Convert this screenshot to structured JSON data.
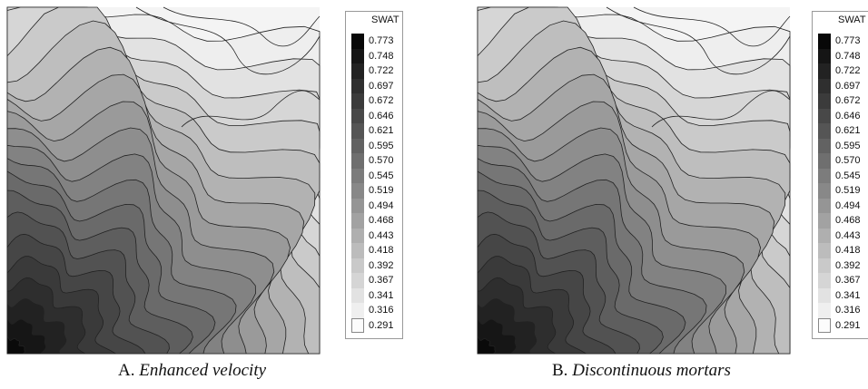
{
  "figure": {
    "panels": [
      {
        "id": "A",
        "caption_prefix": "A.",
        "caption_title": "Enhanced velocity",
        "legend_title": "SWAT",
        "legend_values": [
          "0.773",
          "0.748",
          "0.722",
          "0.697",
          "0.672",
          "0.646",
          "0.621",
          "0.595",
          "0.570",
          "0.545",
          "0.519",
          "0.494",
          "0.468",
          "0.443",
          "0.418",
          "0.392",
          "0.367",
          "0.341",
          "0.316",
          "0.291"
        ]
      },
      {
        "id": "B",
        "caption_prefix": "B.",
        "caption_title": "Discontinuous mortars",
        "legend_title": "SWAT",
        "legend_values": [
          "0.773",
          "0.748",
          "0.722",
          "0.697",
          "0.672",
          "0.646",
          "0.621",
          "0.595",
          "0.570",
          "0.545",
          "0.519",
          "0.494",
          "0.468",
          "0.443",
          "0.418",
          "0.392",
          "0.367",
          "0.341",
          "0.316",
          "0.291"
        ]
      }
    ]
  },
  "chart_data": [
    {
      "type": "heatmap",
      "variable": "SWAT",
      "levels": [
        0.773,
        0.748,
        0.722,
        0.697,
        0.672,
        0.646,
        0.621,
        0.595,
        0.57,
        0.545,
        0.519,
        0.494,
        0.468,
        0.443,
        0.418,
        0.392,
        0.367,
        0.341,
        0.316,
        0.291
      ],
      "caption": "A. Enhanced velocity",
      "colormap": "grayscale dark-high"
    },
    {
      "type": "heatmap",
      "variable": "SWAT",
      "levels": [
        0.773,
        0.748,
        0.722,
        0.697,
        0.672,
        0.646,
        0.621,
        0.595,
        0.57,
        0.545,
        0.519,
        0.494,
        0.468,
        0.443,
        0.418,
        0.392,
        0.367,
        0.341,
        0.316,
        0.291
      ],
      "caption": "B. Discontinuous mortars",
      "colormap": "grayscale dark-high"
    }
  ]
}
